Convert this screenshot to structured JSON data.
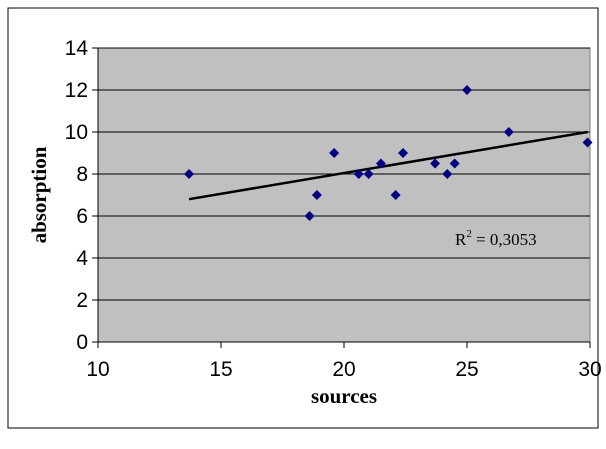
{
  "chart_data": {
    "type": "scatter",
    "title": "",
    "xlabel": "sources",
    "ylabel": "absorption",
    "xlim": [
      10,
      30
    ],
    "ylim": [
      0,
      14
    ],
    "x_ticks": [
      "10",
      "15",
      "20",
      "25",
      "30"
    ],
    "y_ticks": [
      "0",
      "2",
      "4",
      "6",
      "8",
      "10",
      "12",
      "14"
    ],
    "grid": "horizontal",
    "plot_background": "#c0c0c0",
    "marker_color": "#000080",
    "marker": "diamond",
    "series": [
      {
        "points": [
          {
            "x": 13.7,
            "y": 8
          },
          {
            "x": 18.6,
            "y": 6
          },
          {
            "x": 18.9,
            "y": 7
          },
          {
            "x": 19.6,
            "y": 9
          },
          {
            "x": 20.6,
            "y": 8
          },
          {
            "x": 21.0,
            "y": 8
          },
          {
            "x": 21.5,
            "y": 8.5
          },
          {
            "x": 22.1,
            "y": 7
          },
          {
            "x": 22.4,
            "y": 9
          },
          {
            "x": 23.7,
            "y": 8.5
          },
          {
            "x": 24.2,
            "y": 8
          },
          {
            "x": 24.5,
            "y": 8.5
          },
          {
            "x": 25.0,
            "y": 12
          },
          {
            "x": 26.7,
            "y": 10
          },
          {
            "x": 29.9,
            "y": 9.5
          }
        ]
      }
    ],
    "trendline": {
      "type": "linear",
      "start": {
        "x": 13.7,
        "y": 6.8
      },
      "end": {
        "x": 29.9,
        "y": 10.0
      },
      "label_sup": "2",
      "label_prefix": "R",
      "label_suffix": " = 0,3053"
    }
  }
}
